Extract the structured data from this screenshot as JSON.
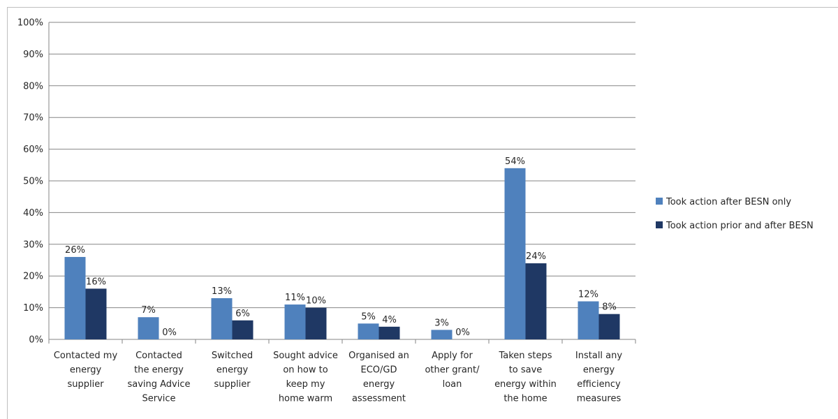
{
  "chart_data": {
    "type": "bar",
    "categories": [
      [
        "Contacted my",
        "energy",
        "supplier"
      ],
      [
        "Contacted",
        "the energy",
        "saving Advice",
        "Service"
      ],
      [
        "Switched",
        "energy",
        "supplier"
      ],
      [
        "Sought advice",
        "on how to",
        "keep my",
        "home warm"
      ],
      [
        "Organised an",
        "ECO/GD",
        "energy",
        "assessment"
      ],
      [
        "Apply for",
        "other grant/",
        "loan"
      ],
      [
        "Taken steps",
        "to save",
        "energy within",
        "the home"
      ],
      [
        "Install any",
        "energy",
        "efficiency",
        "measures"
      ]
    ],
    "series": [
      {
        "name": "Took action after BESN only",
        "color": "#4f81bd",
        "values": [
          26,
          7,
          13,
          11,
          5,
          3,
          54,
          12
        ],
        "labels": [
          "26%",
          "7%",
          "13%",
          "11%",
          "5%",
          "3%",
          "54%",
          "12%"
        ]
      },
      {
        "name": "Took action prior and after BESN",
        "color": "#1f3864",
        "values": [
          16,
          0,
          6,
          10,
          4,
          0,
          24,
          8
        ],
        "labels": [
          "16%",
          "0%",
          "6%",
          "10%",
          "4%",
          "0%",
          "24%",
          "8%"
        ]
      }
    ],
    "ylim": [
      0,
      100
    ],
    "yticks": [
      "0%",
      "10%",
      "20%",
      "30%",
      "40%",
      "50%",
      "60%",
      "70%",
      "80%",
      "90%",
      "100%"
    ],
    "grid": true,
    "legend_position": "right",
    "gridline_color": "#868686"
  }
}
